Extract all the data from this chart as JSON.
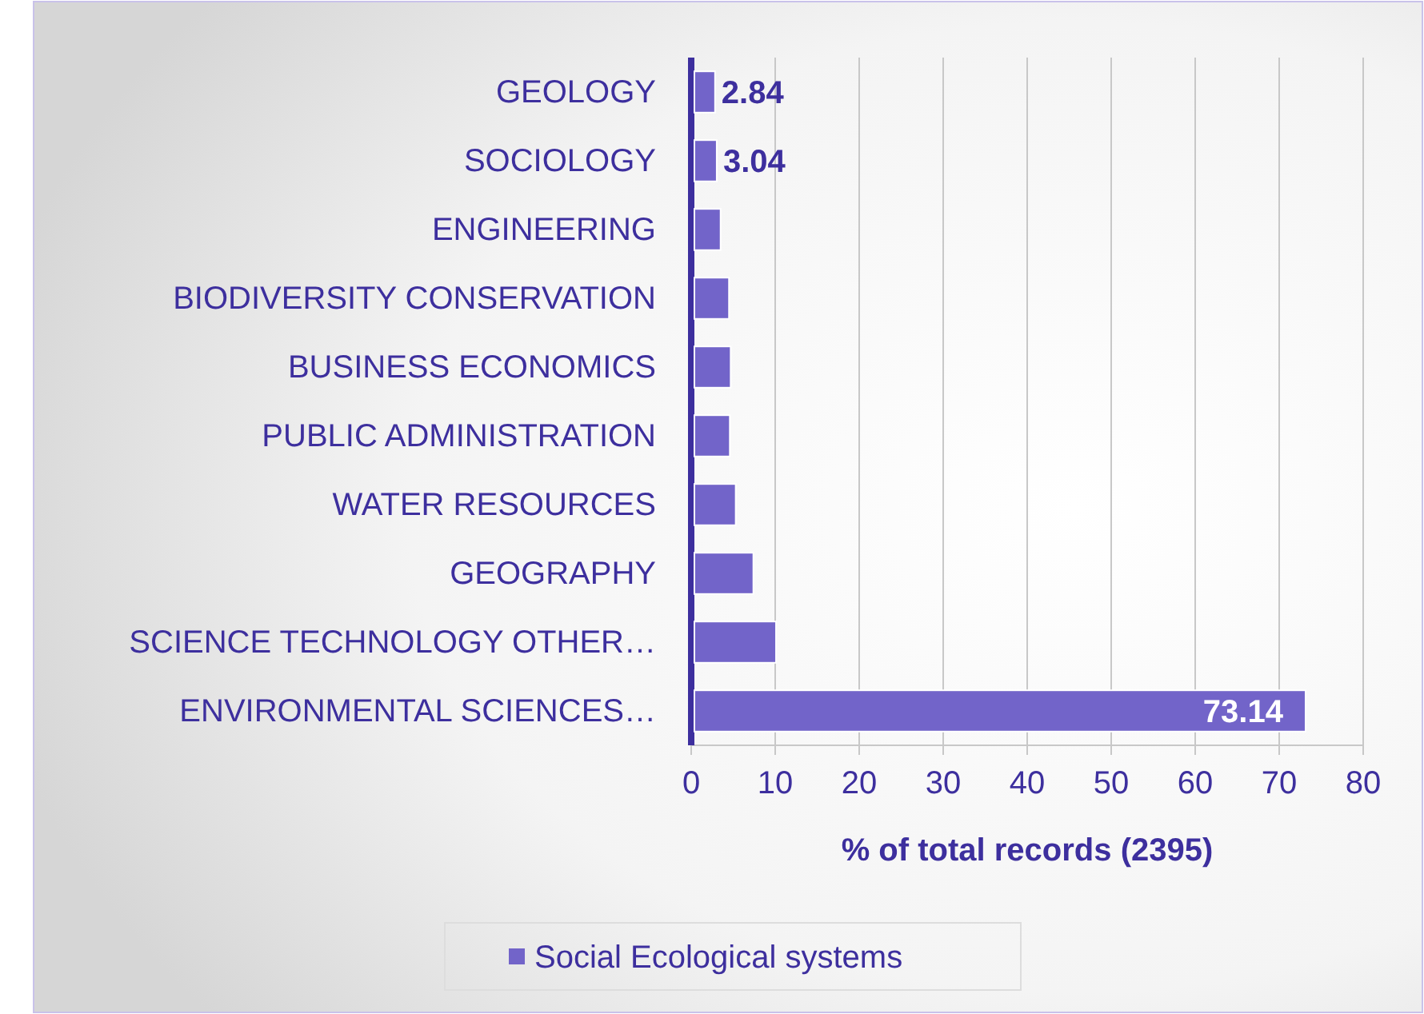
{
  "chart_data": {
    "type": "bar",
    "orientation": "horizontal",
    "xlabel": "% of total records (2395)",
    "categories": [
      "GEOLOGY",
      "SOCIOLOGY",
      "ENGINEERING",
      "BIODIVERSITY CONSERVATION",
      "BUSINESS ECONOMICS",
      "PUBLIC ADMINISTRATION",
      "WATER RESOURCES",
      "GEOGRAPHY",
      "SCIENCE TECHNOLOGY OTHER…",
      "ENVIRONMENTAL SCIENCES…"
    ],
    "series": [
      {
        "name": "Social Ecological systems",
        "color": "#7264c9",
        "values": [
          2.84,
          3.04,
          3.5,
          4.5,
          4.7,
          4.6,
          5.3,
          7.4,
          10.1,
          73.14
        ],
        "value_labels": [
          "2.84",
          "3.04",
          null,
          null,
          null,
          null,
          null,
          null,
          null,
          "73.14"
        ]
      }
    ],
    "xlim": [
      0,
      80
    ],
    "xticks": [
      0,
      10,
      20,
      30,
      40,
      50,
      60,
      70,
      80
    ],
    "grid": "x",
    "legend": "bottom"
  }
}
